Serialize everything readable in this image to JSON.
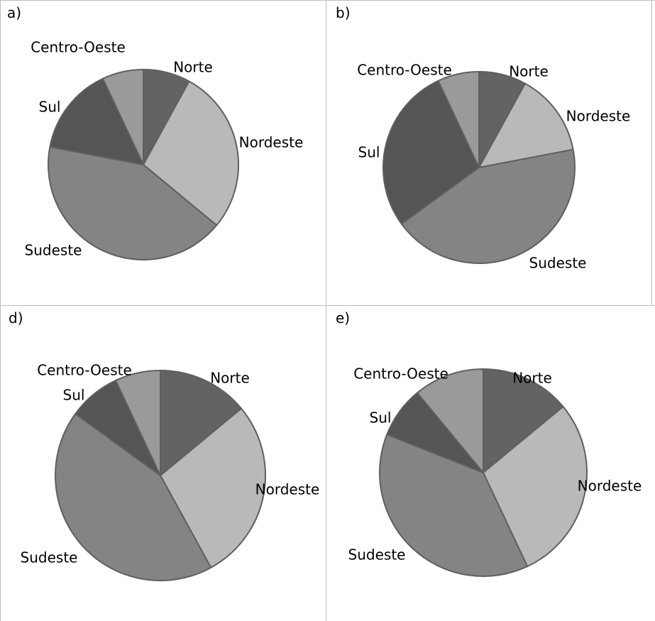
{
  "colors": {
    "Norte": "#636363",
    "Nordeste": "#b9b9b9",
    "Sudeste": "#848484",
    "Sul": "#555555",
    "Centro-Oeste": "#9a9a9a",
    "outline": "#5f5f5f",
    "border": "#bdbdbd"
  },
  "chart_data": [
    {
      "type": "pie",
      "panel_label": "a)",
      "categories": [
        "Norte",
        "Nordeste",
        "Sudeste",
        "Sul",
        "Centro-Oeste"
      ],
      "values": [
        8,
        28,
        42,
        15,
        7
      ]
    },
    {
      "type": "pie",
      "panel_label": "b)",
      "categories": [
        "Norte",
        "Nordeste",
        "Sudeste",
        "Sul",
        "Centro-Oeste"
      ],
      "values": [
        8,
        14,
        43,
        28,
        7
      ]
    },
    {
      "type": "pie",
      "panel_label": "d)",
      "categories": [
        "Norte",
        "Nordeste",
        "Sudeste",
        "Sul",
        "Centro-Oeste"
      ],
      "values": [
        14,
        28,
        43,
        8,
        7
      ]
    },
    {
      "type": "pie",
      "panel_label": "e)",
      "categories": [
        "Norte",
        "Nordeste",
        "Sudeste",
        "Sul",
        "Centro-Oeste"
      ],
      "values": [
        14,
        29,
        38,
        8,
        11
      ]
    }
  ]
}
